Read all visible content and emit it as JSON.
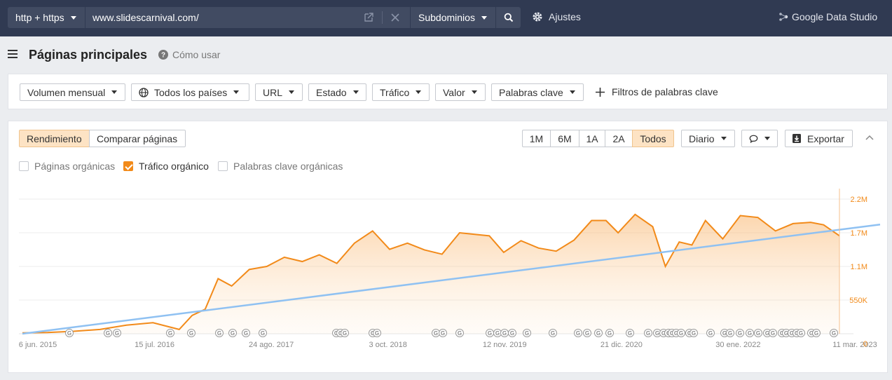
{
  "topbar": {
    "protocol": "http + https",
    "url": "www.slidescarnival.com/",
    "mode": "Subdominios",
    "settings": "Ajustes",
    "gds": "Google Data Studio"
  },
  "header": {
    "title": "Páginas principales",
    "howto": "Cómo usar"
  },
  "filters": [
    "Volumen mensual",
    "Todos los países",
    "URL",
    "Estado",
    "Tráfico",
    "Valor",
    "Palabras clave"
  ],
  "add_filter": "Filtros de palabras clave",
  "tabs": [
    "Rendimiento",
    "Comparar páginas"
  ],
  "ranges": [
    "1M",
    "6M",
    "1A",
    "2A",
    "Todos"
  ],
  "interval": "Diario",
  "export": "Exportar",
  "checkboxes": [
    {
      "label": "Páginas orgánicas",
      "checked": false
    },
    {
      "label": "Tráfico orgánico",
      "checked": true
    },
    {
      "label": "Palabras clave orgánicas",
      "checked": false
    }
  ],
  "colors": {
    "accent": "#f28a19",
    "trend": "#8fc1f2",
    "topbar": "#303a52"
  },
  "chart_data": {
    "type": "area",
    "series": [
      {
        "name": "Tráfico orgánico",
        "x": [
          "2015-06-06",
          "2015-09-01",
          "2015-12-01",
          "2016-03-01",
          "2016-06-01",
          "2016-09-01",
          "2016-12-01",
          "2017-01-15",
          "2017-03-01",
          "2017-04-15",
          "2017-06-01",
          "2017-08-01",
          "2017-10-01",
          "2017-12-01",
          "2018-02-01",
          "2018-04-01",
          "2018-06-01",
          "2018-08-01",
          "2018-10-03",
          "2018-12-01",
          "2019-02-01",
          "2019-04-01",
          "2019-06-01",
          "2019-08-01",
          "2019-10-01",
          "2019-11-12",
          "2020-01-01",
          "2020-03-01",
          "2020-05-01",
          "2020-07-01",
          "2020-09-01",
          "2020-11-01",
          "2020-12-21",
          "2021-02-01",
          "2021-04-01",
          "2021-06-01",
          "2021-07-15",
          "2021-09-01",
          "2021-10-15",
          "2021-12-01",
          "2022-01-30",
          "2022-04-01",
          "2022-06-01",
          "2022-08-01",
          "2022-10-01",
          "2022-12-01",
          "2023-01-15",
          "2023-03-11"
        ],
        "values": [
          15000,
          20000,
          40000,
          70000,
          140000,
          180000,
          70000,
          300000,
          400000,
          900000,
          780000,
          1050000,
          1100000,
          1250000,
          1180000,
          1290000,
          1150000,
          1480000,
          1680000,
          1380000,
          1480000,
          1370000,
          1300000,
          1650000,
          1620000,
          1600000,
          1330000,
          1520000,
          1400000,
          1350000,
          1530000,
          1850000,
          1850000,
          1650000,
          1950000,
          1750000,
          1100000,
          1500000,
          1450000,
          1850000,
          1550000,
          1930000,
          1900000,
          1680000,
          1800000,
          1820000,
          1780000,
          1600000
        ]
      },
      {
        "name": "",
        "x": [
          "2015-06-06",
          "2023-03-11"
        ],
        "values": [
          0,
          1700000
        ]
      }
    ],
    "x_ticks": [
      "6 jun. 2015",
      "15 jul. 2016",
      "24 ago. 2017",
      "3 oct. 2018",
      "12 nov. 2019",
      "21 dic. 2020",
      "30 ene. 2022",
      "11 mar. 2023"
    ],
    "y_ticks": [
      "2.2M",
      "1.7M",
      "1.1M",
      "550K",
      "0"
    ],
    "ylim": [
      0,
      2200000
    ],
    "grid": true,
    "annotations_marker": "G"
  }
}
